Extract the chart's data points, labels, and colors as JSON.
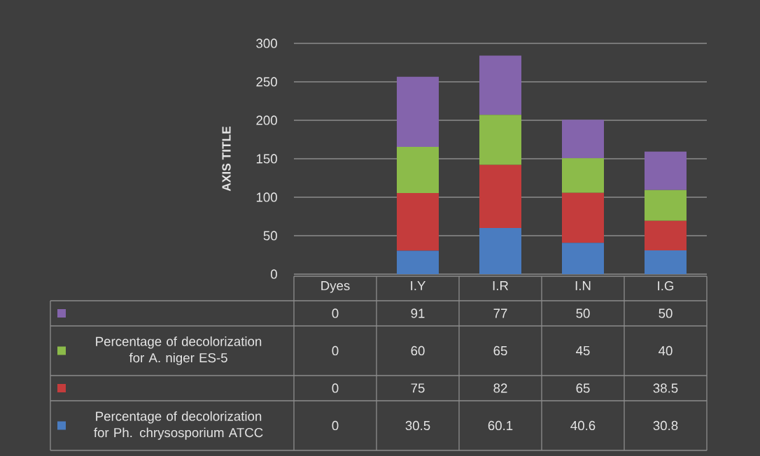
{
  "chart_data": {
    "type": "bar",
    "stacked": true,
    "ylabel": "AXIS TITLE",
    "categories": [
      "Dyes",
      "I.Y",
      "I.R",
      "I.N",
      "I.G"
    ],
    "series": [
      {
        "name": "Percentage of decolorization for Ph. chrysosporium ATCC",
        "color": "#4a7cc0",
        "values": [
          0,
          30.5,
          60.1,
          40.6,
          30.8
        ],
        "value_labels": [
          "0",
          "30.5",
          "60.1",
          "40.6",
          "30.8"
        ]
      },
      {
        "color": "#c43c3c",
        "values": [
          0,
          75,
          82,
          65,
          38.5
        ],
        "value_labels": [
          "0",
          "75",
          "82",
          "65",
          "38.5"
        ]
      },
      {
        "name": "Percentage of decolorization for A. niger ES-5",
        "color": "#8cbb4a",
        "values": [
          0,
          60,
          65,
          45,
          40
        ],
        "value_labels": [
          "0",
          "60",
          "65",
          "45",
          "40"
        ]
      },
      {
        "color": "#8464ac",
        "values": [
          0,
          91,
          77,
          50,
          50
        ],
        "value_labels": [
          "0",
          "91",
          "77",
          "50",
          "50"
        ]
      }
    ],
    "ylim": [
      0,
      300
    ],
    "yticks": [
      0,
      50,
      100,
      150,
      200,
      250,
      300
    ],
    "grid": "y",
    "legend": "bottom"
  }
}
